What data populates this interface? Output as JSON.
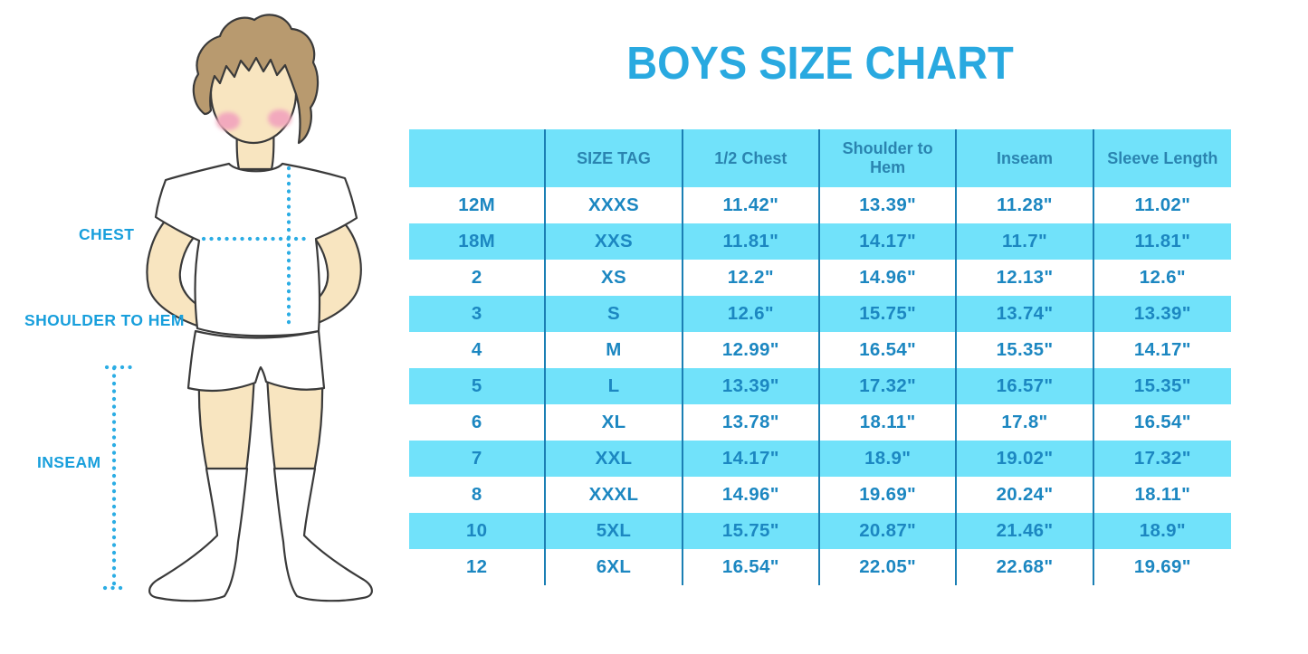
{
  "title": "BOYS SIZE CHART",
  "figure": {
    "description": "cartoon boy in white t-shirt, shorts and knee socks with dotted measurement guides",
    "labels": {
      "chest": "CHEST",
      "shoulder_to_hem": "SHOULDER TO HEM",
      "inseam": "INSEAM"
    }
  },
  "colors": {
    "title_blue": "#29A9E0",
    "label_blue": "#189FDC",
    "dotted_guide": "#2CADE4",
    "table_stripe": "#71E2FA",
    "table_separator": "#1B7FB4",
    "header_text": "#2A84B0",
    "cell_text": "#1C87C1",
    "skin": "#F8E5C0",
    "hair": "#B89A6F"
  },
  "chart_data": {
    "type": "table",
    "title": "BOYS SIZE CHART",
    "columns": [
      "",
      "SIZE TAG",
      "1/2 Chest",
      "Shoulder to Hem",
      "Inseam",
      "Sleeve Length"
    ],
    "rows": [
      [
        "12M",
        "XXXS",
        "11.42\"",
        "13.39\"",
        "11.28\"",
        "11.02\""
      ],
      [
        "18M",
        "XXS",
        "11.81\"",
        "14.17\"",
        "11.7\"",
        "11.81\""
      ],
      [
        "2",
        "XS",
        "12.2\"",
        "14.96\"",
        "12.13\"",
        "12.6\""
      ],
      [
        "3",
        "S",
        "12.6\"",
        "15.75\"",
        "13.74\"",
        "13.39\""
      ],
      [
        "4",
        "M",
        "12.99\"",
        "16.54\"",
        "15.35\"",
        "14.17\""
      ],
      [
        "5",
        "L",
        "13.39\"",
        "17.32\"",
        "16.57\"",
        "15.35\""
      ],
      [
        "6",
        "XL",
        "13.78\"",
        "18.11\"",
        "17.8\"",
        "16.54\""
      ],
      [
        "7",
        "XXL",
        "14.17\"",
        "18.9\"",
        "19.02\"",
        "17.32\""
      ],
      [
        "8",
        "XXXL",
        "14.96\"",
        "19.69\"",
        "20.24\"",
        "18.11\""
      ],
      [
        "10",
        "5XL",
        "15.75\"",
        "20.87\"",
        "21.46\"",
        "18.9\""
      ],
      [
        "12",
        "6XL",
        "16.54\"",
        "22.05\"",
        "22.68\"",
        "19.69\""
      ]
    ],
    "striped_row_indices": [
      1,
      3,
      5,
      7,
      9
    ],
    "layout": "header row and alternate rows cyan, vertical column separators only, no outer border"
  }
}
